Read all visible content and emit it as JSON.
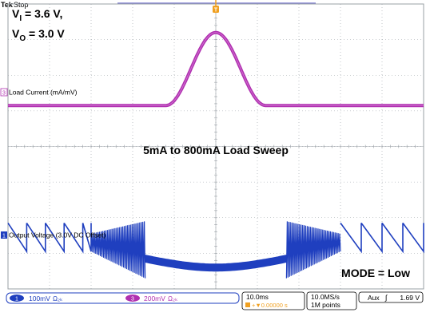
{
  "header": {
    "brand": "Tek",
    "status": "Stop"
  },
  "annotations": {
    "vin_label": "V",
    "vin_sub": "I",
    "vin_value": " = 3.6 V,",
    "vout_label": "V",
    "vout_sub": "O",
    "vout_value": " = 3.0 V",
    "title": "5mA to 800mA Load Sweep",
    "mode": "MODE = Low"
  },
  "channels": [
    {
      "marker": "3",
      "label": "Load Current (mA/mV)",
      "color": "#b030b0"
    },
    {
      "marker": "1",
      "label": "Output Voltage (3.0V DC Offset)",
      "color": "#1f3fbf"
    }
  ],
  "trigger_marker": "T",
  "status_bar": {
    "ch1_badge": "1",
    "ch1_scale": "100mV",
    "ch1_suffix": "Ω₂ₖ",
    "ch3_badge": "3",
    "ch3_scale": "200mV",
    "ch3_suffix": "Ω₂ₖ",
    "timebase": "10.0ms",
    "delay": "+▼0.00000 s",
    "sample_rate": "10.0MS/s",
    "record_length": "1M points",
    "trigger_source": "Aux",
    "trigger_slope": "∫",
    "trigger_level": "1.69 V"
  },
  "colors": {
    "grid": "#9aa0a6",
    "load_current": "#b030b0",
    "output_voltage": "#1f3fbf",
    "trigger": "#f0a020"
  },
  "chart_data": {
    "type": "line",
    "title": "5mA to 800mA Load Sweep",
    "x_divisions": 10,
    "y_divisions": 8,
    "grid": true,
    "series": [
      {
        "name": "Load Current (mA/mV)",
        "description_of_shape": "flat low level, raised-cosine hump peaking at center, flat low level",
        "x_div": [
          0,
          3.8,
          4.2,
          5.0,
          5.0,
          5.8,
          6.2,
          10
        ],
        "y_div_from_top": [
          2.85,
          2.85,
          2.5,
          0.8,
          0.8,
          2.5,
          2.85,
          2.85
        ]
      },
      {
        "name": "Output Voltage (3.0V DC Offset)",
        "description_of_shape": "sawtooth ripple at light load, dense switching burst, flat dip at heavy load, burst, sawtooth",
        "x_div": [
          0,
          1.3,
          2.5,
          3.3,
          5.0,
          6.7,
          7.6,
          10
        ],
        "y_div_from_top": [
          6.6,
          6.6,
          6.4,
          7.2,
          7.4,
          7.2,
          6.4,
          6.6
        ]
      }
    ]
  }
}
